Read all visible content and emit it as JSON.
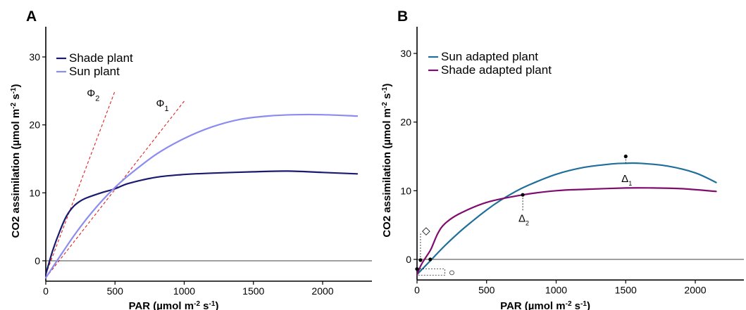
{
  "chart_data": [
    {
      "panel": "A",
      "type": "line",
      "xlabel": "PAR (µmol m-2 s-1)",
      "ylabel": "CO2 assimilation (µmol m-2 s-1)",
      "xlim": [
        0,
        2400
      ],
      "ylim": [
        -3,
        34
      ],
      "xticks": [
        0,
        500,
        1000,
        1500,
        2000
      ],
      "yticks": [
        0,
        10,
        20,
        30
      ],
      "legend_position": "top-left",
      "series": [
        {
          "name": "Shade plant",
          "color": "#1a1a6e",
          "x": [
            0,
            50,
            100,
            150,
            200,
            250,
            300,
            400,
            500,
            600,
            800,
            1000,
            1200,
            1500,
            1750,
            2000,
            2250
          ],
          "y": [
            -2,
            1.5,
            4.3,
            6.6,
            8.0,
            8.8,
            9.3,
            10.0,
            10.6,
            11.4,
            12.3,
            12.7,
            12.9,
            13.1,
            13.2,
            13.0,
            12.8
          ]
        },
        {
          "name": "Sun plant",
          "color": "#8c8cf0",
          "x": [
            0,
            100,
            200,
            300,
            400,
            500,
            600,
            800,
            1000,
            1200,
            1400,
            1600,
            1800,
            2000,
            2250
          ],
          "y": [
            -2.5,
            0.6,
            3.6,
            6.3,
            8.7,
            10.8,
            12.6,
            15.7,
            18.0,
            19.7,
            20.8,
            21.3,
            21.5,
            21.5,
            21.3
          ]
        }
      ],
      "reference_lines": [
        {
          "label": "Φ",
          "subscript": "2",
          "x": [
            0,
            500
          ],
          "y": [
            -2,
            25
          ],
          "color": "#e02020"
        },
        {
          "label": "Φ",
          "subscript": "1",
          "x": [
            0,
            1000
          ],
          "y": [
            -2.5,
            23.5
          ],
          "color": "#e02020"
        }
      ]
    },
    {
      "panel": "B",
      "type": "line",
      "xlabel": "PAR (µmol m-2 s-1)",
      "ylabel": "CO2 assimilation (µmol m-2 s-1)",
      "xlim": [
        0,
        2400
      ],
      "ylim": [
        -3,
        34
      ],
      "xticks": [
        0,
        500,
        1000,
        1500,
        2000
      ],
      "yticks": [
        0,
        10,
        20,
        30
      ],
      "legend_position": "top-left",
      "series": [
        {
          "name": "Sun adapted plant",
          "color": "#1f6f9a",
          "x": [
            0,
            100,
            200,
            300,
            400,
            500,
            600,
            700,
            800,
            1000,
            1200,
            1400,
            1500,
            1600,
            1800,
            2000,
            2150
          ],
          "y": [
            -2.2,
            -0.1,
            2.0,
            3.9,
            5.6,
            7.2,
            8.6,
            9.8,
            10.8,
            12.4,
            13.4,
            13.9,
            14.0,
            14.0,
            13.6,
            12.6,
            11.2
          ]
        },
        {
          "name": "Shade adapted plant",
          "color": "#800d6e",
          "x": [
            0,
            30,
            60,
            100,
            150,
            200,
            300,
            500,
            760,
            1000,
            1200,
            1500,
            1700,
            1900,
            2150
          ],
          "y": [
            -2.2,
            -0.8,
            0.2,
            1.5,
            3.8,
            5.2,
            6.6,
            8.3,
            9.4,
            10.0,
            10.2,
            10.4,
            10.4,
            10.3,
            9.9
          ]
        }
      ],
      "markers": [
        {
          "x": 0,
          "y": -1.4
        },
        {
          "x": 25,
          "y": -0.1
        },
        {
          "x": 95,
          "y": 0
        },
        {
          "x": 760,
          "y": 9.4
        },
        {
          "x": 1500,
          "y": 15.0
        }
      ],
      "annotations": [
        {
          "label": "Δ",
          "subscript": "1",
          "x": 1500,
          "y_from": 15.0,
          "y_to": 14.0,
          "text_x": 1530,
          "text_y": 11.8
        },
        {
          "label": "Δ",
          "subscript": "2",
          "x": 760,
          "y_from": 9.4,
          "y_to": 7.0,
          "text_x": 790,
          "text_y": 6.0
        },
        {
          "label": "◇",
          "x": 65,
          "y": 4.2,
          "guide_y_from": -0.1,
          "guide_x_from": 25
        },
        {
          "label": "○",
          "x": 250,
          "y": -1.6,
          "guide_y": -1.4,
          "guide_x_from": 0
        }
      ]
    }
  ]
}
